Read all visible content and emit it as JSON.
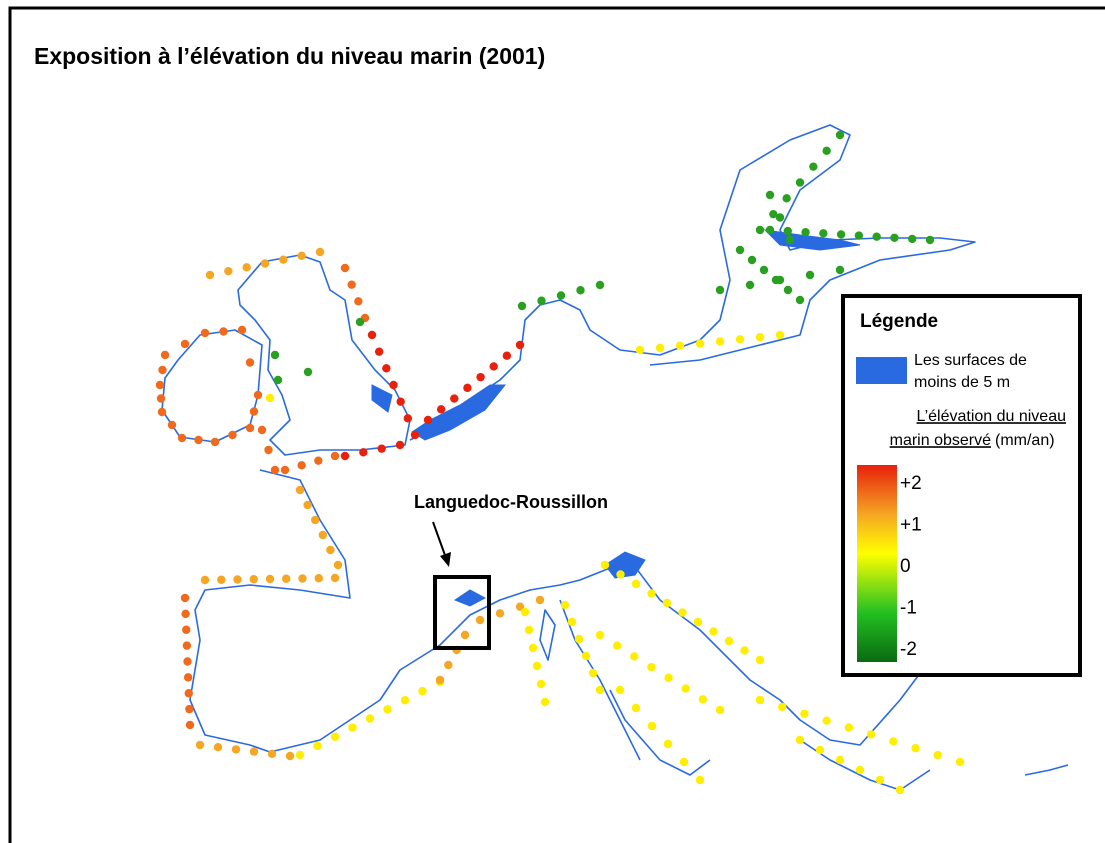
{
  "title": "Exposition à l’élévation du niveau marin (2001)",
  "annotation": "Languedoc-Roussillon",
  "legend": {
    "title": "Légende",
    "area_label_1": "Les surfaces de",
    "area_label_2": "moins de 5 m",
    "scale_title_1": "L’élévation du niveau",
    "scale_title_2": "marin observé",
    "scale_unit": "(mm/an)",
    "ticks": [
      {
        "value": 2,
        "label": "+2"
      },
      {
        "value": 1,
        "label": "+1"
      },
      0,
      -1,
      -2
    ]
  }
}
